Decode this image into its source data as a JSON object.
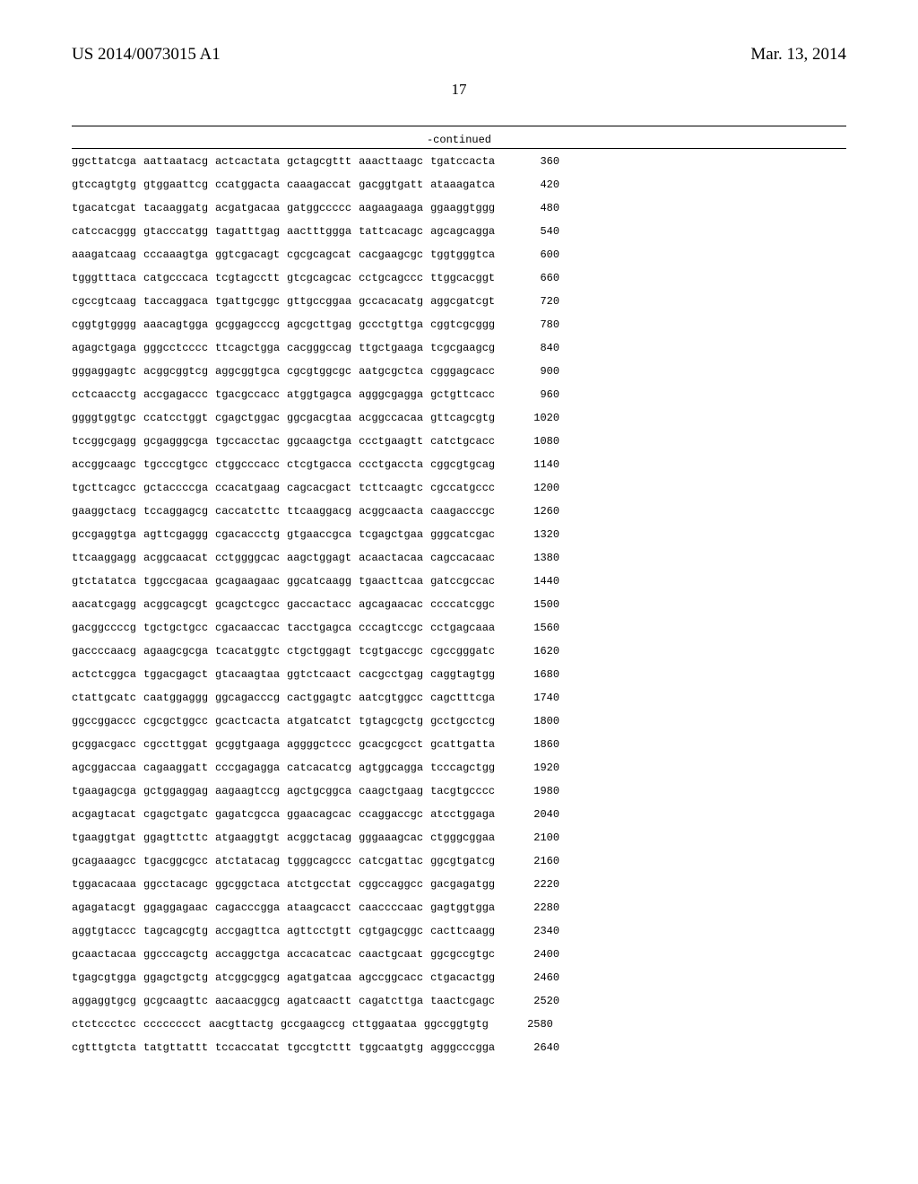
{
  "header": {
    "publication_number": "US 2014/0073015 A1",
    "publication_date": "Mar. 13, 2014"
  },
  "page_number": "17",
  "continued_label": "-continued",
  "sequence": {
    "font_family": "Courier New",
    "font_size_pt": 12,
    "rows": [
      {
        "blocks": [
          "ggcttatcga",
          "aattaatacg",
          "actcactata",
          "gctagcgttt",
          "aaacttaagc",
          "tgatccacta"
        ],
        "pos": 360
      },
      {
        "blocks": [
          "gtccagtgtg",
          "gtggaattcg",
          "ccatggacta",
          "caaagaccat",
          "gacggtgatt",
          "ataaagatca"
        ],
        "pos": 420
      },
      {
        "blocks": [
          "tgacatcgat",
          "tacaaggatg",
          "acgatgacaa",
          "gatggccccc",
          "aagaagaaga",
          "ggaaggtggg"
        ],
        "pos": 480
      },
      {
        "blocks": [
          "catccacggg",
          "gtacccatgg",
          "tagatttgag",
          "aactttggga",
          "tattcacagc",
          "agcagcagga"
        ],
        "pos": 540
      },
      {
        "blocks": [
          "aaagatcaag",
          "cccaaagtga",
          "ggtcgacagt",
          "cgcgcagcat",
          "cacgaagcgc",
          "tggtgggtca"
        ],
        "pos": 600
      },
      {
        "blocks": [
          "tgggtttaca",
          "catgcccaca",
          "tcgtagcctt",
          "gtcgcagcac",
          "cctgcagccc",
          "ttggcacggt"
        ],
        "pos": 660
      },
      {
        "blocks": [
          "cgccgtcaag",
          "taccaggaca",
          "tgattgcggc",
          "gttgccggaa",
          "gccacacatg",
          "aggcgatcgt"
        ],
        "pos": 720
      },
      {
        "blocks": [
          "cggtgtgggg",
          "aaacagtgga",
          "gcggagcccg",
          "agcgcttgag",
          "gccctgttga",
          "cggtcgcggg"
        ],
        "pos": 780
      },
      {
        "blocks": [
          "agagctgaga",
          "gggcctcccc",
          "ttcagctgga",
          "cacgggccag",
          "ttgctgaaga",
          "tcgcgaagcg"
        ],
        "pos": 840
      },
      {
        "blocks": [
          "gggaggagtc",
          "acggcggtcg",
          "aggcggtgca",
          "cgcgtggcgc",
          "aatgcgctca",
          "cgggagcacc"
        ],
        "pos": 900
      },
      {
        "blocks": [
          "cctcaacctg",
          "accgagaccc",
          "tgacgccacc",
          "atggtgagca",
          "agggcgagga",
          "gctgttcacc"
        ],
        "pos": 960
      },
      {
        "blocks": [
          "ggggtggtgc",
          "ccatcctggt",
          "cgagctggac",
          "ggcgacgtaa",
          "acggccacaa",
          "gttcagcgtg"
        ],
        "pos": 1020
      },
      {
        "blocks": [
          "tccggcgagg",
          "gcgagggcga",
          "tgccacctac",
          "ggcaagctga",
          "ccctgaagtt",
          "catctgcacc"
        ],
        "pos": 1080
      },
      {
        "blocks": [
          "accggcaagc",
          "tgcccgtgcc",
          "ctggcccacc",
          "ctcgtgacca",
          "ccctgaccta",
          "cggcgtgcag"
        ],
        "pos": 1140
      },
      {
        "blocks": [
          "tgcttcagcc",
          "gctaccccga",
          "ccacatgaag",
          "cagcacgact",
          "tcttcaagtc",
          "cgccatgccc"
        ],
        "pos": 1200
      },
      {
        "blocks": [
          "gaaggctacg",
          "tccaggagcg",
          "caccatcttc",
          "ttcaaggacg",
          "acggcaacta",
          "caagacccgc"
        ],
        "pos": 1260
      },
      {
        "blocks": [
          "gccgaggtga",
          "agttcgaggg",
          "cgacaccctg",
          "gtgaaccgca",
          "tcgagctgaa",
          "gggcatcgac"
        ],
        "pos": 1320
      },
      {
        "blocks": [
          "ttcaaggagg",
          "acggcaacat",
          "cctggggcac",
          "aagctggagt",
          "acaactacaa",
          "cagccacaac"
        ],
        "pos": 1380
      },
      {
        "blocks": [
          "gtctatatca",
          "tggccgacaa",
          "gcagaagaac",
          "ggcatcaagg",
          "tgaacttcaa",
          "gatccgccac"
        ],
        "pos": 1440
      },
      {
        "blocks": [
          "aacatcgagg",
          "acggcagcgt",
          "gcagctcgcc",
          "gaccactacc",
          "agcagaacac",
          "ccccatcggc"
        ],
        "pos": 1500
      },
      {
        "blocks": [
          "gacggccccg",
          "tgctgctgcc",
          "cgacaaccac",
          "tacctgagca",
          "cccagtccgc",
          "cctgagcaaa"
        ],
        "pos": 1560
      },
      {
        "blocks": [
          "gaccccaacg",
          "agaagcgcga",
          "tcacatggtc",
          "ctgctggagt",
          "tcgtgaccgc",
          "cgccgggatc"
        ],
        "pos": 1620
      },
      {
        "blocks": [
          "actctcggca",
          "tggacgagct",
          "gtacaagtaa",
          "ggtctcaact",
          "cacgcctgag",
          "caggtagtgg"
        ],
        "pos": 1680
      },
      {
        "blocks": [
          "ctattgcatc",
          "caatggaggg",
          "ggcagacccg",
          "cactggagtc",
          "aatcgtggcc",
          "cagctttcga"
        ],
        "pos": 1740
      },
      {
        "blocks": [
          "ggccggaccc",
          "cgcgctggcc",
          "gcactcacta",
          "atgatcatct",
          "tgtagcgctg",
          "gcctgcctcg"
        ],
        "pos": 1800
      },
      {
        "blocks": [
          "gcggacgacc",
          "cgccttggat",
          "gcggtgaaga",
          "aggggctccc",
          "gcacgcgcct",
          "gcattgatta"
        ],
        "pos": 1860
      },
      {
        "blocks": [
          "agcggaccaa",
          "cagaaggatt",
          "cccgagagga",
          "catcacatcg",
          "agtggcagga",
          "tcccagctgg"
        ],
        "pos": 1920
      },
      {
        "blocks": [
          "tgaagagcga",
          "gctggaggag",
          "aagaagtccg",
          "agctgcggca",
          "caagctgaag",
          "tacgtgcccc"
        ],
        "pos": 1980
      },
      {
        "blocks": [
          "acgagtacat",
          "cgagctgatc",
          "gagatcgcca",
          "ggaacagcac",
          "ccaggaccgc",
          "atcctggaga"
        ],
        "pos": 2040
      },
      {
        "blocks": [
          "tgaaggtgat",
          "ggagttcttc",
          "atgaaggtgt",
          "acggctacag",
          "gggaaagcac",
          "ctgggcggaa"
        ],
        "pos": 2100
      },
      {
        "blocks": [
          "gcagaaagcc",
          "tgacggcgcc",
          "atctatacag",
          "tgggcagccc",
          "catcgattac",
          "ggcgtgatcg"
        ],
        "pos": 2160
      },
      {
        "blocks": [
          "tggacacaaa",
          "ggcctacagc",
          "ggcggctaca",
          "atctgcctat",
          "cggccaggcc",
          "gacgagatgg"
        ],
        "pos": 2220
      },
      {
        "blocks": [
          "agagatacgt",
          "ggaggagaac",
          "cagacccgga",
          "ataagcacct",
          "caaccccaac",
          "gagtggtgga"
        ],
        "pos": 2280
      },
      {
        "blocks": [
          "aggtgtaccc",
          "tagcagcgtg",
          "accgagttca",
          "agttcctgtt",
          "cgtgagcggc",
          "cacttcaagg"
        ],
        "pos": 2340
      },
      {
        "blocks": [
          "gcaactacaa",
          "ggcccagctg",
          "accaggctga",
          "accacatcac",
          "caactgcaat",
          "ggcgccgtgc"
        ],
        "pos": 2400
      },
      {
        "blocks": [
          "tgagcgtgga",
          "ggagctgctg",
          "atcggcggcg",
          "agatgatcaa",
          "agccggcacc",
          "ctgacactgg"
        ],
        "pos": 2460
      },
      {
        "blocks": [
          "aggaggtgcg",
          "gcgcaagttc",
          "aacaacggcg",
          "agatcaactt",
          "cagatcttga",
          "taactcgagc"
        ],
        "pos": 2520
      },
      {
        "blocks": [
          "ctctccctcc",
          "cccccccct",
          "aacgttactg",
          "gccgaagccg",
          "cttggaataa",
          "ggccggtgtg"
        ],
        "pos": 2580
      },
      {
        "blocks": [
          "cgtttgtcta",
          "tatgttattt",
          "tccaccatat",
          "tgccgtcttt",
          "tggcaatgtg",
          "agggcccgga"
        ],
        "pos": 2640
      }
    ]
  },
  "colors": {
    "background": "#ffffff",
    "text": "#000000",
    "rule": "#000000"
  }
}
